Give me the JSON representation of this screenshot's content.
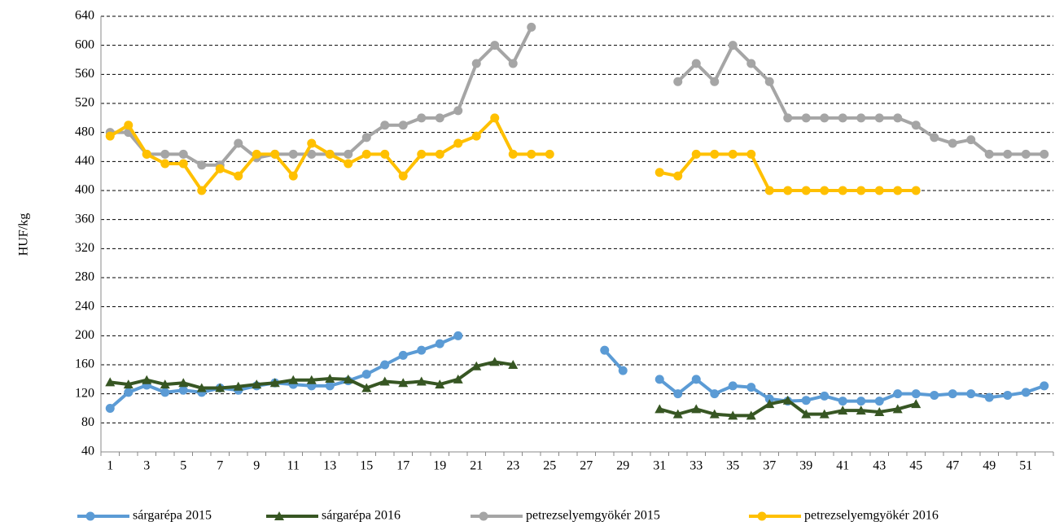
{
  "chart_data": {
    "type": "line",
    "y_label": "HUF/kg",
    "categories": [
      1,
      null,
      3,
      null,
      5,
      null,
      7,
      null,
      9,
      null,
      11,
      null,
      13,
      null,
      15,
      null,
      17,
      null,
      19,
      null,
      21,
      null,
      23,
      null,
      25,
      null,
      27,
      null,
      29,
      null,
      31,
      null,
      33,
      null,
      35,
      null,
      37,
      null,
      39,
      null,
      41,
      null,
      43,
      null,
      45,
      null,
      47,
      null,
      49,
      null,
      51,
      null
    ],
    "ylim": [
      40,
      640
    ],
    "yticks": [
      40,
      80,
      120,
      160,
      200,
      240,
      280,
      320,
      360,
      400,
      440,
      480,
      520,
      560,
      600,
      640
    ],
    "grid": true,
    "legend": "bottom",
    "series": [
      {
        "name": "sárgarépa 2015",
        "color": "#5b9bd5",
        "marker": "circle",
        "values": [
          100,
          122,
          132,
          122,
          125,
          122,
          128,
          125,
          131,
          135,
          133,
          131,
          131,
          138,
          147,
          160,
          173,
          180,
          189,
          200,
          null,
          null,
          null,
          null,
          null,
          null,
          null,
          180,
          152,
          null,
          140,
          120,
          140,
          120,
          131,
          129,
          113,
          110,
          111,
          117,
          110,
          110,
          110,
          120,
          120,
          118,
          120,
          120,
          115,
          118,
          122,
          131
        ]
      },
      {
        "name": "sárgarépa 2016",
        "color": "#375623",
        "marker": "triangle",
        "values": [
          136,
          133,
          139,
          133,
          135,
          128,
          128,
          130,
          133,
          135,
          139,
          139,
          141,
          140,
          128,
          137,
          135,
          137,
          133,
          140,
          158,
          164,
          160,
          null,
          null,
          null,
          null,
          null,
          null,
          null,
          99,
          92,
          99,
          92,
          90,
          90,
          106,
          111,
          92,
          92,
          97,
          97,
          95,
          99,
          106,
          null,
          null,
          null,
          null,
          null,
          null,
          null
        ]
      },
      {
        "name": "petrezselyemgyökér 2015",
        "color": "#a5a5a5",
        "marker": "circle",
        "values": [
          480,
          480,
          450,
          450,
          450,
          435,
          435,
          465,
          445,
          450,
          450,
          450,
          450,
          450,
          473,
          490,
          490,
          500,
          500,
          510,
          575,
          600,
          575,
          625,
          null,
          null,
          null,
          null,
          null,
          null,
          null,
          550,
          575,
          550,
          600,
          575,
          550,
          500,
          500,
          500,
          500,
          500,
          500,
          500,
          490,
          473,
          465,
          470,
          450,
          450,
          450,
          450
        ]
      },
      {
        "name": "petrezselyemgyökér 2016",
        "color": "#ffc000",
        "marker": "circle",
        "values": [
          475,
          490,
          450,
          437,
          437,
          400,
          430,
          420,
          450,
          450,
          420,
          465,
          450,
          437,
          450,
          450,
          420,
          450,
          450,
          465,
          475,
          500,
          450,
          450,
          450,
          null,
          null,
          null,
          null,
          null,
          425,
          420,
          450,
          450,
          450,
          450,
          400,
          400,
          400,
          400,
          400,
          400,
          400,
          400,
          400,
          null,
          null,
          null,
          null,
          null,
          null,
          null
        ]
      }
    ]
  }
}
